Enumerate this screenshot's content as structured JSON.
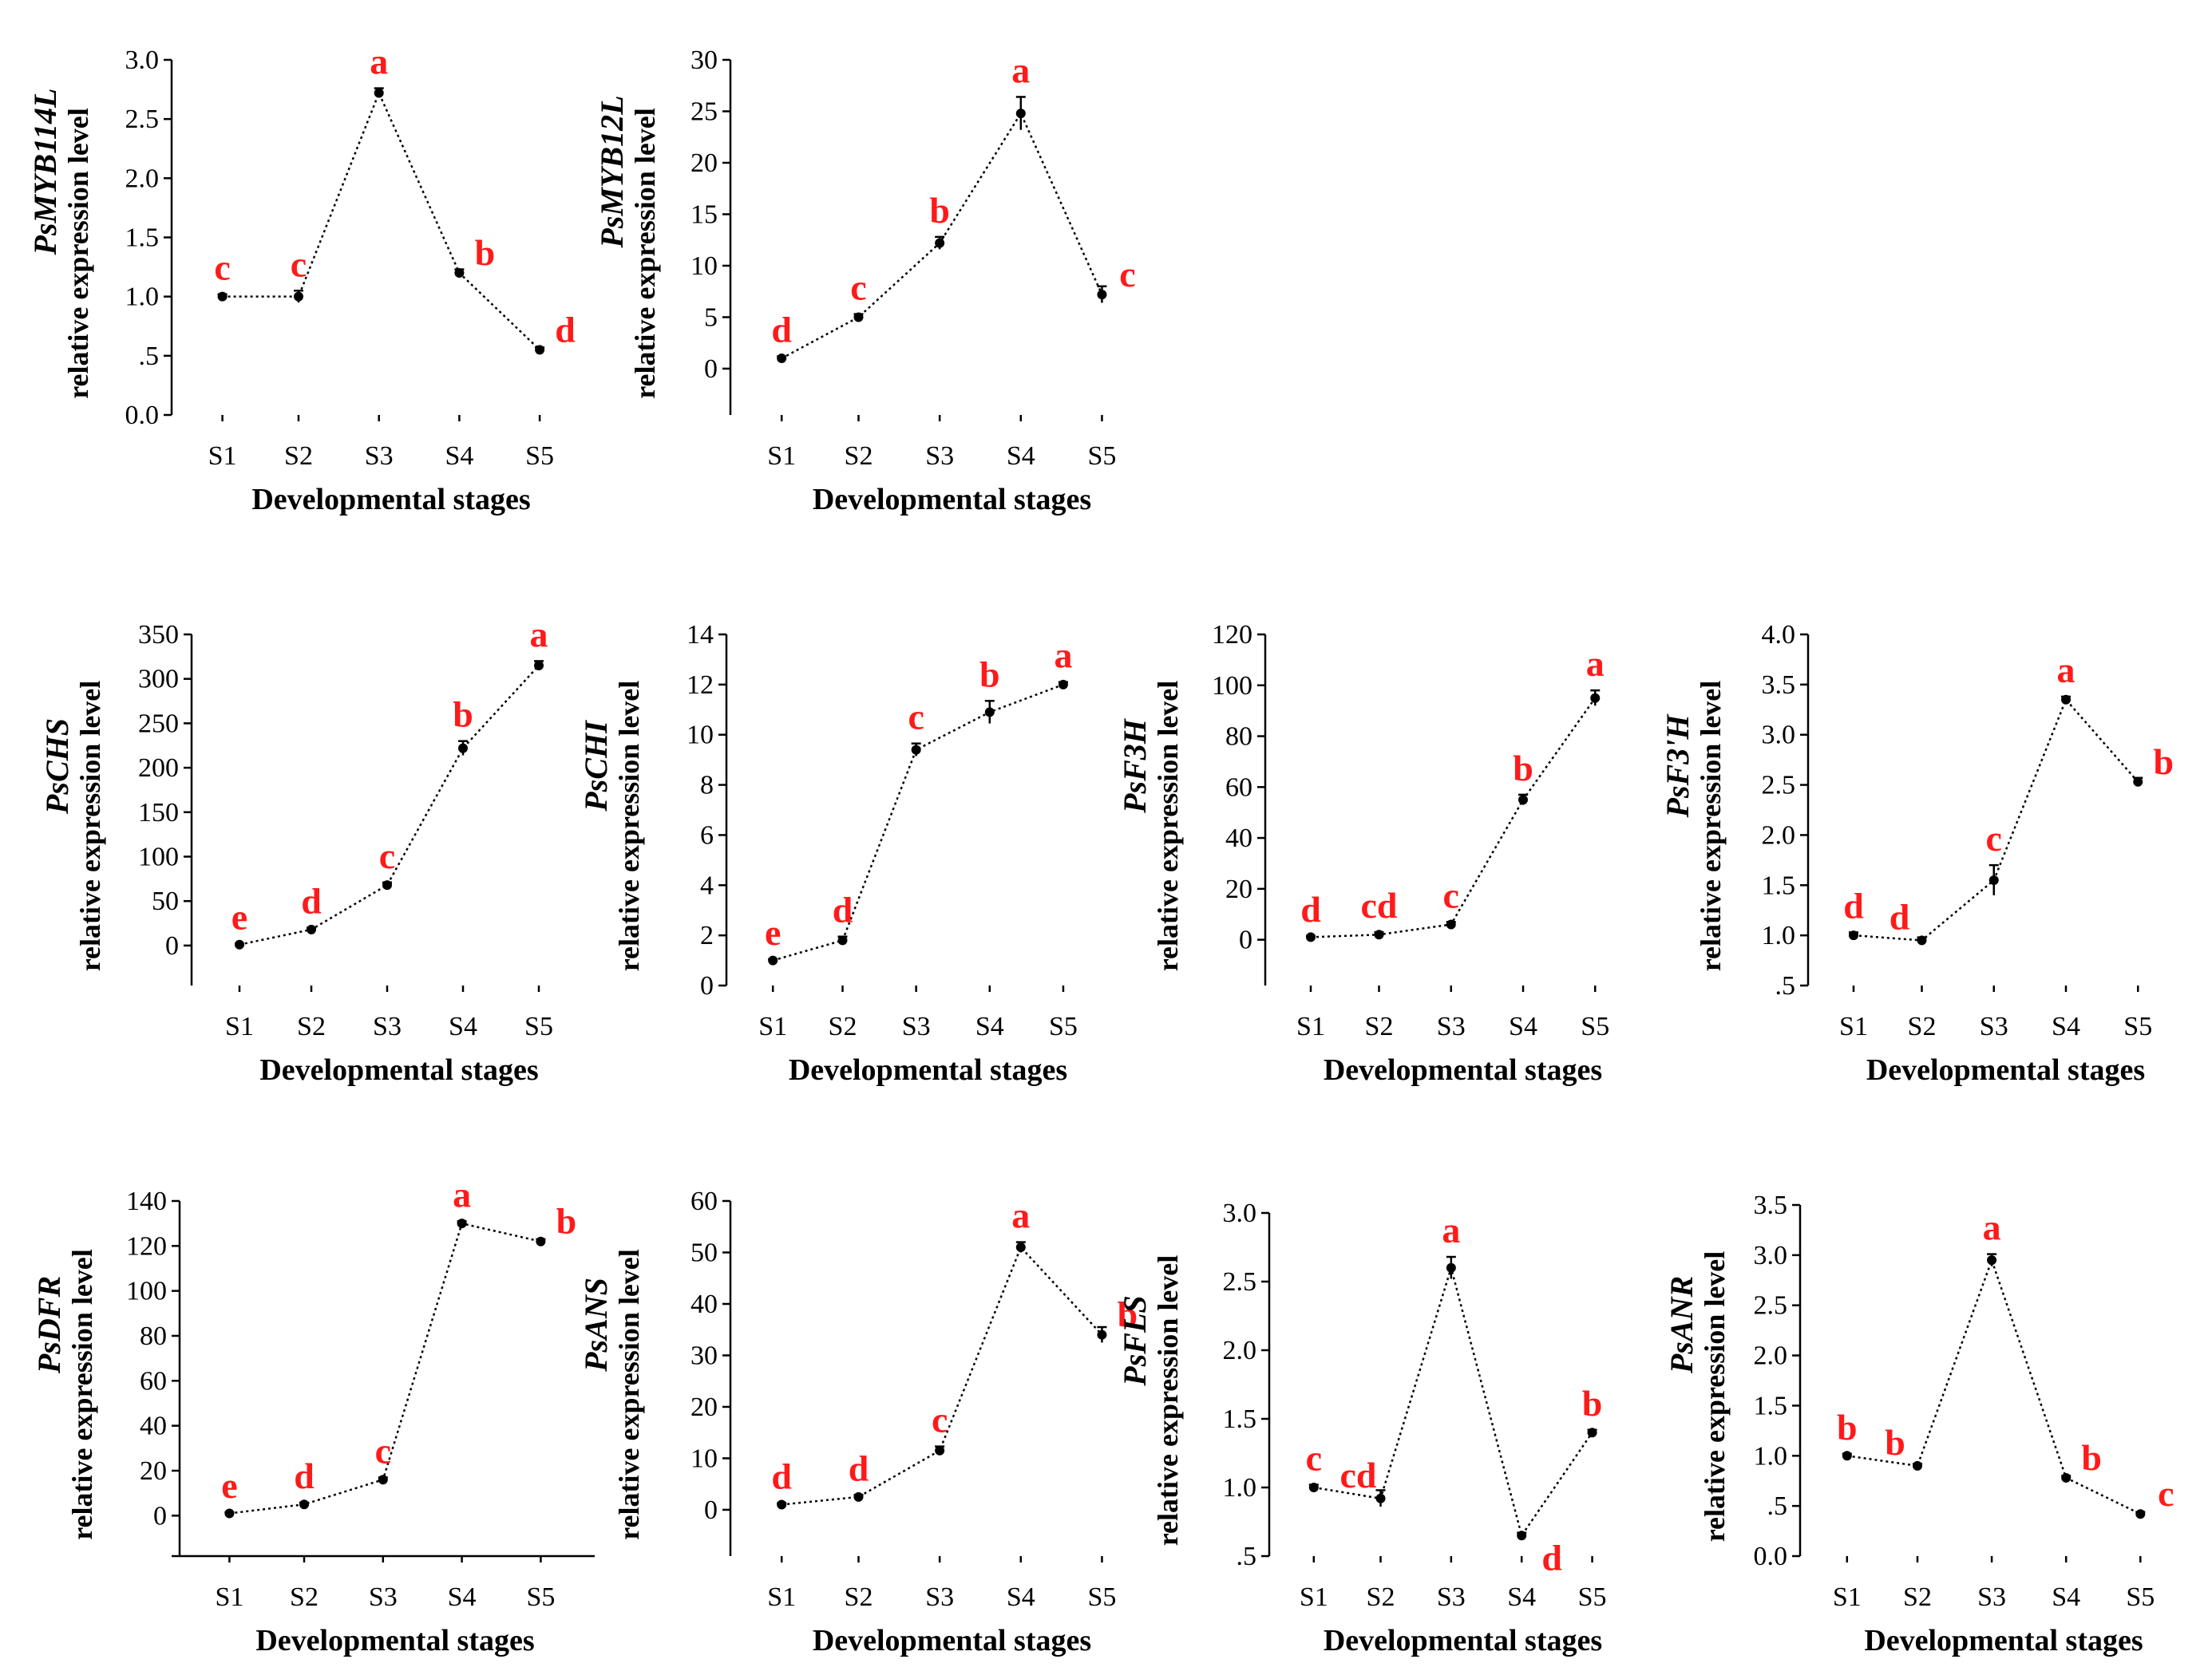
{
  "figure": {
    "shared_ylabel": "relative expression level",
    "shared_xlabel": "Developmental stages"
  },
  "chart_data": [
    {
      "id": "PsMYB114L",
      "type": "line",
      "gene": "PsMYB114L",
      "ylabel": "relative expression level",
      "xlabel": "Developmental stages",
      "categories": [
        "S1",
        "S2",
        "S3",
        "S4",
        "S5"
      ],
      "values": [
        1.0,
        1.0,
        2.72,
        1.2,
        0.55
      ],
      "errors": [
        0.02,
        0.05,
        0.04,
        0.03,
        0.02
      ],
      "letters": [
        "c",
        "c",
        "a",
        "b",
        "d"
      ],
      "ylim": [
        0,
        3.0
      ],
      "yticks": [
        "0.0",
        ".5",
        "1.0",
        "1.5",
        "2.0",
        "2.5",
        "3.0"
      ]
    },
    {
      "id": "PsMYB12L",
      "type": "line",
      "gene": "PsMYB12L",
      "ylabel": "relative expression level",
      "xlabel": "Developmental stages",
      "categories": [
        "S1",
        "S2",
        "S3",
        "S4",
        "S5"
      ],
      "values": [
        1.0,
        5.0,
        12.2,
        24.8,
        7.2
      ],
      "errors": [
        0.2,
        0.3,
        0.6,
        1.6,
        0.8
      ],
      "letters": [
        "d",
        "c",
        "b",
        "a",
        "c"
      ],
      "ylim": [
        -4.5,
        30
      ],
      "yticks": [
        "0",
        "5",
        "10",
        "15",
        "20",
        "25",
        "30"
      ]
    },
    {
      "id": "PsCHS",
      "type": "line",
      "gene": "PsCHS",
      "ylabel": "relative expression level",
      "xlabel": "Developmental stages",
      "categories": [
        "S1",
        "S2",
        "S3",
        "S4",
        "S5"
      ],
      "values": [
        1,
        18,
        68,
        222,
        315
      ],
      "errors": [
        1,
        2,
        3,
        8,
        5
      ],
      "letters": [
        "e",
        "d",
        "c",
        "b",
        "a"
      ],
      "ylim": [
        -45,
        350
      ],
      "yticks": [
        "0",
        "50",
        "100",
        "150",
        "200",
        "250",
        "300",
        "350"
      ]
    },
    {
      "id": "PsCHI",
      "type": "line",
      "gene": "PsCHI",
      "ylabel": "relative expression level",
      "xlabel": "Developmental stages",
      "categories": [
        "S1",
        "S2",
        "S3",
        "S4",
        "S5"
      ],
      "values": [
        1.0,
        1.8,
        9.4,
        10.9,
        12.0
      ],
      "errors": [
        0.05,
        0.15,
        0.25,
        0.45,
        0.1
      ],
      "letters": [
        "e",
        "d",
        "c",
        "b",
        "a"
      ],
      "ylim": [
        0,
        14
      ],
      "yticks": [
        "0",
        "2",
        "4",
        "6",
        "8",
        "10",
        "12",
        "14"
      ]
    },
    {
      "id": "PsF3H",
      "type": "line",
      "gene": "PsF3H",
      "ylabel": "relative expression level",
      "xlabel": "Developmental stages",
      "categories": [
        "S1",
        "S2",
        "S3",
        "S4",
        "S5"
      ],
      "values": [
        1,
        2,
        6,
        55,
        95
      ],
      "errors": [
        0.5,
        1,
        1,
        2,
        3
      ],
      "letters": [
        "d",
        "cd",
        "c",
        "b",
        "a"
      ],
      "ylim": [
        -18,
        120
      ],
      "yticks": [
        "0",
        "20",
        "40",
        "60",
        "80",
        "100",
        "120"
      ]
    },
    {
      "id": "PsF3pH",
      "type": "line",
      "gene": "PsF3'H",
      "ylabel": "relative expression level",
      "xlabel": "Developmental stages",
      "categories": [
        "S1",
        "S2",
        "S3",
        "S4",
        "S5"
      ],
      "values": [
        1.0,
        0.95,
        1.55,
        3.35,
        2.53
      ],
      "errors": [
        0.03,
        0.03,
        0.15,
        0.03,
        0.04
      ],
      "letters": [
        "d",
        "d",
        "c",
        "a",
        "b"
      ],
      "ylim": [
        0.5,
        4.0
      ],
      "yticks": [
        ".5",
        "1.0",
        "1.5",
        "2.0",
        "2.5",
        "3.0",
        "3.5",
        "4.0"
      ]
    },
    {
      "id": "PsDFR",
      "type": "line",
      "gene": "PsDFR",
      "ylabel": "relative expression level",
      "xlabel": "Developmental stages",
      "categories": [
        "S1",
        "S2",
        "S3",
        "S4",
        "S5"
      ],
      "values": [
        1,
        5,
        16,
        130,
        122
      ],
      "errors": [
        0.5,
        0.8,
        1,
        1,
        1
      ],
      "letters": [
        "e",
        "d",
        "c",
        "a",
        "b"
      ],
      "ylim": [
        -18,
        140
      ],
      "yticks": [
        "0",
        "20",
        "40",
        "60",
        "80",
        "100",
        "120",
        "140"
      ]
    },
    {
      "id": "PsANS",
      "type": "line",
      "gene": "PsANS",
      "ylabel": "relative expression level",
      "xlabel": "Developmental stages",
      "categories": [
        "S1",
        "S2",
        "S3",
        "S4",
        "S5"
      ],
      "values": [
        1,
        2.5,
        11.5,
        51,
        34
      ],
      "errors": [
        0.3,
        0.4,
        0.8,
        1.0,
        1.5
      ],
      "letters": [
        "d",
        "d",
        "c",
        "a",
        "b"
      ],
      "ylim": [
        -9,
        60
      ],
      "yticks": [
        "0",
        "10",
        "20",
        "30",
        "40",
        "50",
        "60"
      ]
    },
    {
      "id": "PsFLS",
      "type": "line",
      "gene": "PsFLS",
      "ylabel": "relative expression level",
      "xlabel": "Developmental stages",
      "categories": [
        "S1",
        "S2",
        "S3",
        "S4",
        "S5"
      ],
      "values": [
        1.0,
        0.92,
        2.6,
        0.65,
        1.4
      ],
      "errors": [
        0.02,
        0.06,
        0.08,
        0.02,
        0.02
      ],
      "letters": [
        "c",
        "cd",
        "a",
        "d",
        "b"
      ],
      "ylim": [
        0.5,
        3.0
      ],
      "yticks": [
        ".5",
        "1.0",
        "1.5",
        "2.0",
        "2.5",
        "3.0"
      ]
    },
    {
      "id": "PsANR",
      "type": "line",
      "gene": "PsANR",
      "ylabel": "relative expression level",
      "xlabel": "Developmental stages",
      "categories": [
        "S1",
        "S2",
        "S3",
        "S4",
        "S5"
      ],
      "values": [
        1.0,
        0.9,
        2.95,
        0.78,
        0.42
      ],
      "errors": [
        0.02,
        0.02,
        0.06,
        0.02,
        0.02
      ],
      "letters": [
        "b",
        "b",
        "a",
        "b",
        "c"
      ],
      "ylim": [
        0,
        3.5
      ],
      "yticks": [
        "0.0",
        ".5",
        "1.0",
        "1.5",
        "2.0",
        "2.5",
        "3.0",
        "3.5"
      ]
    }
  ]
}
